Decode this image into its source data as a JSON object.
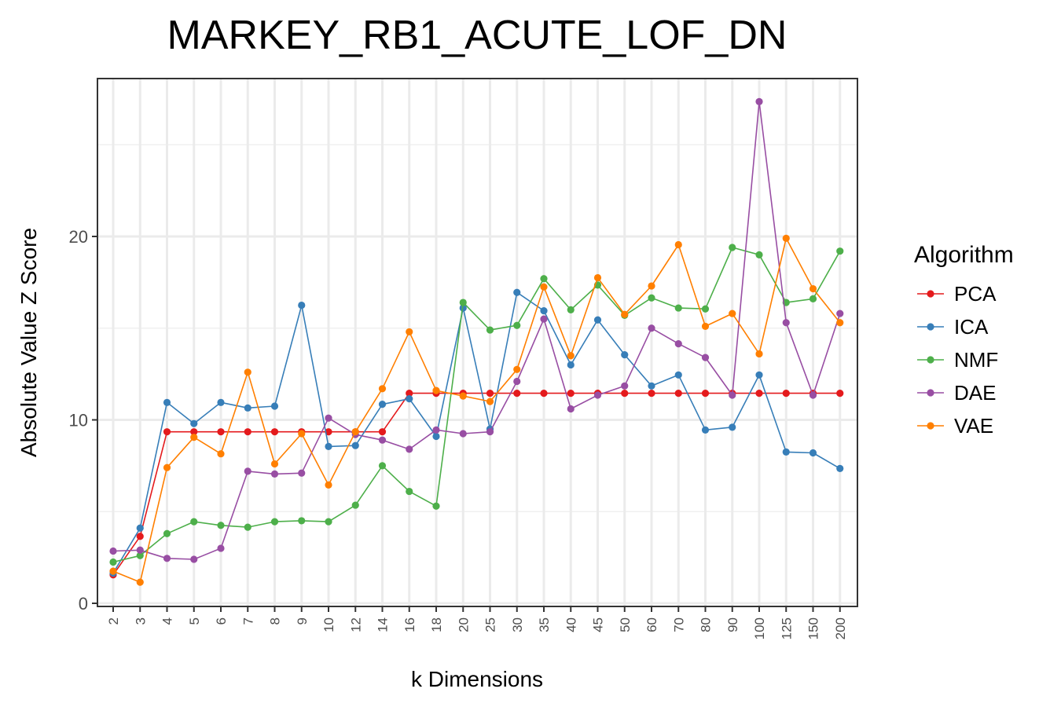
{
  "chart_data": {
    "type": "line",
    "title": "MARKEY_RB1_ACUTE_LOF_DN",
    "xlabel": "k Dimensions",
    "ylabel": "Absolute Value Z Score",
    "categories": [
      "2",
      "3",
      "4",
      "5",
      "6",
      "7",
      "8",
      "9",
      "10",
      "12",
      "14",
      "16",
      "18",
      "20",
      "25",
      "30",
      "35",
      "40",
      "45",
      "50",
      "60",
      "70",
      "80",
      "90",
      "100",
      "125",
      "150",
      "200"
    ],
    "yticks": [
      "0",
      "10",
      "20"
    ],
    "ylim": [
      -0.3,
      28.8
    ],
    "grid": true,
    "legend": {
      "title": "Algorithm",
      "position": "right"
    },
    "series": [
      {
        "name": "PCA",
        "color": "#e41a1c",
        "values": [
          1.55,
          3.65,
          9.35,
          9.35,
          9.35,
          9.35,
          9.35,
          9.35,
          9.35,
          9.35,
          9.35,
          11.45,
          11.45,
          11.45,
          11.45,
          11.45,
          11.45,
          11.45,
          11.45,
          11.45,
          11.45,
          11.45,
          11.45,
          11.45,
          11.45,
          11.45,
          11.45,
          11.45
        ]
      },
      {
        "name": "ICA",
        "color": "#377eb8",
        "values": [
          1.65,
          4.1,
          10.95,
          9.8,
          10.95,
          10.65,
          10.75,
          16.25,
          8.55,
          8.6,
          10.85,
          11.15,
          9.1,
          16.1,
          9.5,
          16.95,
          15.95,
          13.0,
          15.45,
          13.55,
          11.85,
          12.45,
          9.45,
          9.6,
          12.45,
          8.25,
          8.2,
          7.35
        ]
      },
      {
        "name": "NMF",
        "color": "#4daf4a",
        "values": [
          2.25,
          2.6,
          3.8,
          4.45,
          4.25,
          4.15,
          4.45,
          4.5,
          4.45,
          5.35,
          7.5,
          6.1,
          5.3,
          16.4,
          14.9,
          15.15,
          17.7,
          16.0,
          17.35,
          15.7,
          16.65,
          16.1,
          16.05,
          19.4,
          19.0,
          16.4,
          16.6,
          19.2
        ]
      },
      {
        "name": "DAE",
        "color": "#984ea3",
        "values": [
          2.85,
          2.9,
          2.45,
          2.4,
          3.0,
          7.2,
          7.05,
          7.1,
          10.1,
          9.2,
          8.9,
          8.4,
          9.45,
          9.25,
          9.35,
          12.1,
          15.5,
          10.6,
          11.35,
          11.85,
          15.0,
          14.15,
          13.4,
          11.35,
          27.35,
          15.3,
          11.35,
          15.8
        ]
      },
      {
        "name": "VAE",
        "color": "#ff7f00",
        "values": [
          1.75,
          1.15,
          7.4,
          9.05,
          8.15,
          12.6,
          7.6,
          9.25,
          6.45,
          9.35,
          11.7,
          14.8,
          11.6,
          11.3,
          11.0,
          12.75,
          17.25,
          13.5,
          17.75,
          15.75,
          17.3,
          19.55,
          15.1,
          15.8,
          13.6,
          19.9,
          17.15,
          15.3
        ]
      }
    ]
  }
}
